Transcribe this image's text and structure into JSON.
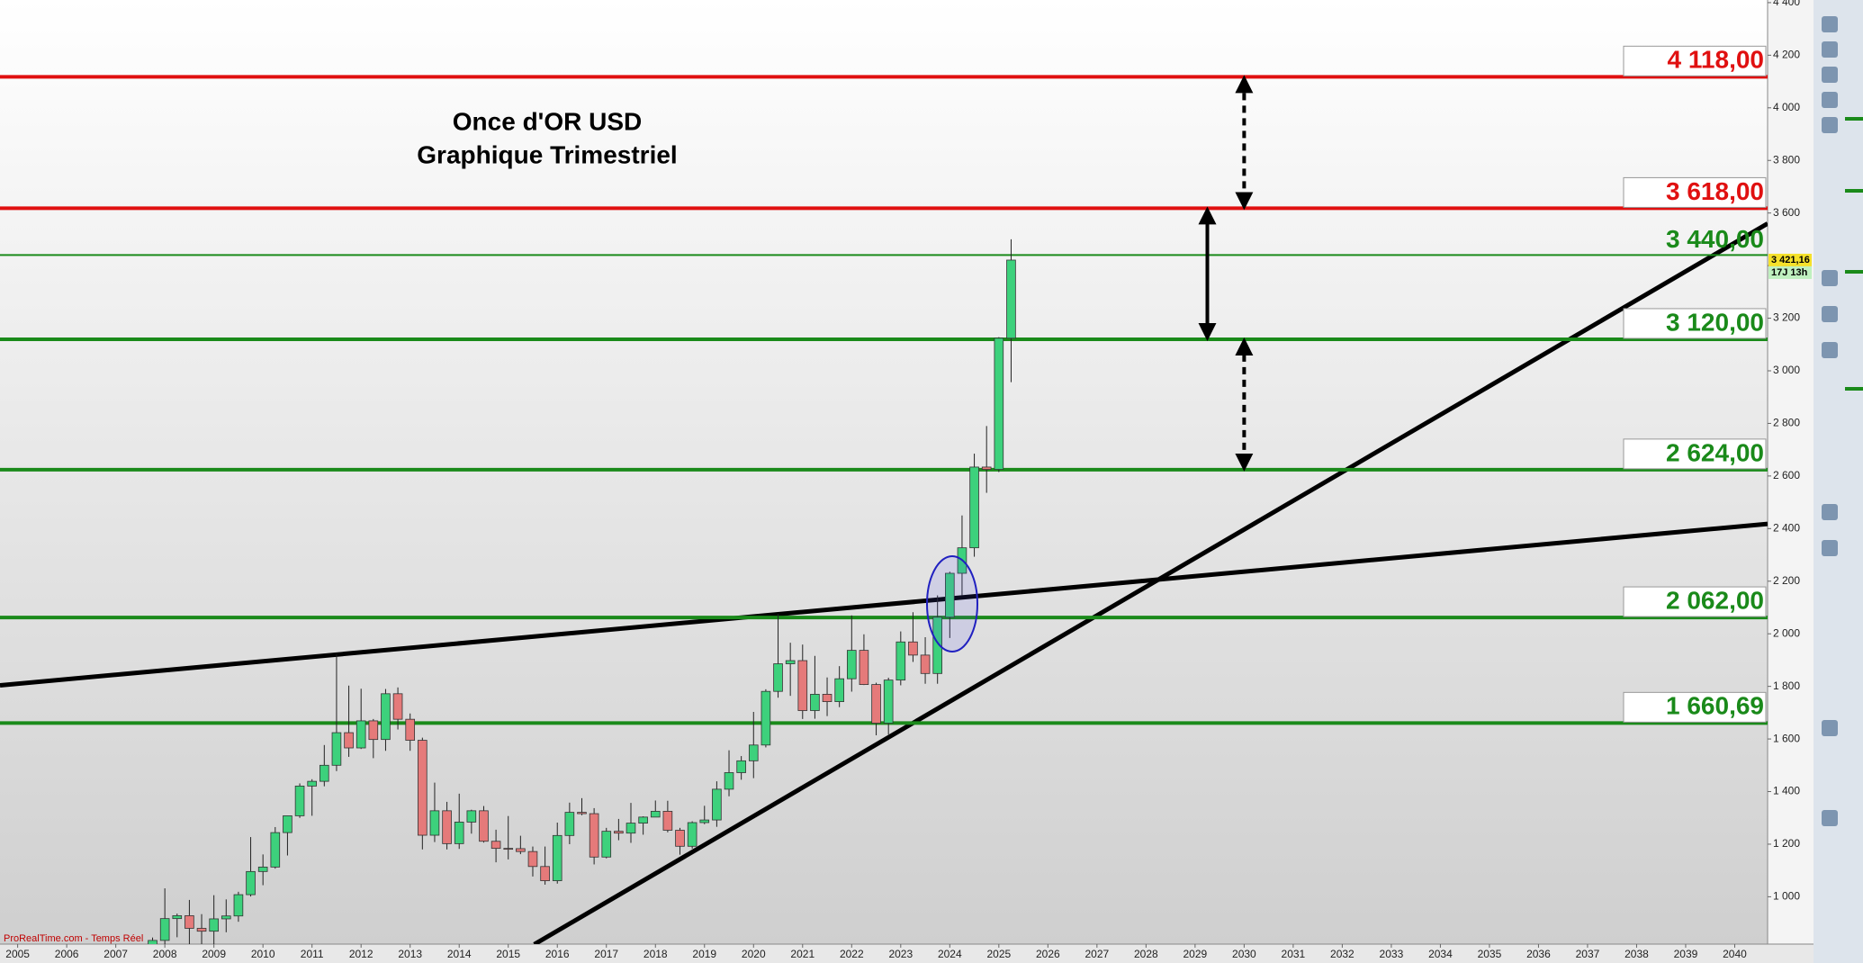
{
  "chart_data": {
    "type": "candlestick",
    "title": "Once d'OR USD",
    "subtitle": "Graphique Trimestriel",
    "footer": "ProRealTime.com - Temps Réel",
    "xlim": [
      2004.64,
      2040.67
    ],
    "xticks": [
      2005,
      2006,
      2007,
      2008,
      2009,
      2010,
      2011,
      2012,
      2013,
      2014,
      2015,
      2016,
      2017,
      2018,
      2019,
      2020,
      2021,
      2022,
      2023,
      2024,
      2025,
      2026,
      2027,
      2028,
      2029,
      2030,
      2031,
      2032,
      2033,
      2034,
      2035,
      2036,
      2037,
      2038,
      2039,
      2040
    ],
    "ylim": [
      820,
      4410
    ],
    "yticks": [
      {
        "value": 1000,
        "label": "1 000"
      },
      {
        "value": 1200,
        "label": "1 200"
      },
      {
        "value": 1400,
        "label": "1 400"
      },
      {
        "value": 1600,
        "label": "1 600"
      },
      {
        "value": 1800,
        "label": "1 800"
      },
      {
        "value": 2000,
        "label": "2 000"
      },
      {
        "value": 2200,
        "label": "2 200"
      },
      {
        "value": 2400,
        "label": "2 400"
      },
      {
        "value": 2600,
        "label": "2 600"
      },
      {
        "value": 2800,
        "label": "2 800"
      },
      {
        "value": 3000,
        "label": "3 000"
      },
      {
        "value": 3200,
        "label": "3 200"
      },
      {
        "value": 3400,
        "label": "3 400"
      },
      {
        "value": 3600,
        "label": "3 600"
      },
      {
        "value": 3800,
        "label": "3 800"
      },
      {
        "value": 4000,
        "label": "4 000"
      },
      {
        "value": 4200,
        "label": "4 200"
      },
      {
        "value": 4400,
        "label": "4 400"
      }
    ],
    "up_color": "#3dd17c",
    "down_color": "#e57a7a",
    "x": [
      2007.75,
      2008,
      2008.25,
      2008.5,
      2008.75,
      2009,
      2009.25,
      2009.5,
      2009.75,
      2010,
      2010.25,
      2010.5,
      2010.75,
      2011,
      2011.25,
      2011.5,
      2011.75,
      2012,
      2012.25,
      2012.5,
      2012.75,
      2013,
      2013.25,
      2013.5,
      2013.75,
      2014,
      2014.25,
      2014.5,
      2014.75,
      2015,
      2015.25,
      2015.5,
      2015.75,
      2016,
      2016.25,
      2016.5,
      2016.75,
      2017,
      2017.25,
      2017.5,
      2017.75,
      2018,
      2018.25,
      2018.5,
      2018.75,
      2019,
      2019.25,
      2019.5,
      2019.75,
      2020,
      2020.25,
      2020.5,
      2020.75,
      2021,
      2021.25,
      2021.5,
      2021.75,
      2022,
      2022.25,
      2022.5,
      2022.75,
      2023,
      2023.25,
      2023.5,
      2023.75,
      2024,
      2024.25,
      2024.5,
      2024.75,
      2025,
      2025.25
    ],
    "open": [
      743,
      834,
      917,
      928,
      880,
      869,
      916,
      927,
      1008,
      1096,
      1113,
      1244,
      1308,
      1421,
      1439,
      1500,
      1624,
      1566,
      1669,
      1598,
      1772,
      1675,
      1595,
      1234,
      1327,
      1202,
      1284,
      1327,
      1211,
      1184,
      1183,
      1172,
      1115,
      1061,
      1233,
      1321,
      1316,
      1151,
      1249,
      1242,
      1280,
      1303,
      1325,
      1253,
      1192,
      1282,
      1292,
      1409,
      1472,
      1517,
      1577,
      1781,
      1886,
      1898,
      1708,
      1770,
      1742,
      1829,
      1937,
      1807,
      1660,
      1824,
      1969,
      1919,
      1849,
      2063,
      2230,
      2327,
      2634,
      2625,
      3124
    ],
    "high": [
      845,
      1032,
      936,
      988,
      934,
      1006,
      990,
      1019,
      1227,
      1161,
      1265,
      1308,
      1431,
      1447,
      1577,
      1921,
      1803,
      1791,
      1676,
      1790,
      1796,
      1697,
      1605,
      1434,
      1361,
      1392,
      1331,
      1345,
      1255,
      1307,
      1232,
      1191,
      1191,
      1282,
      1358,
      1375,
      1337,
      1262,
      1296,
      1357,
      1306,
      1366,
      1365,
      1262,
      1287,
      1346,
      1439,
      1557,
      1535,
      1703,
      1789,
      2075,
      1966,
      1959,
      1916,
      1834,
      1877,
      2070,
      1998,
      1814,
      1833,
      2009,
      2082,
      1987,
      2146,
      2236,
      2450,
      2685,
      2790,
      3128,
      3500
    ],
    "low": [
      723,
      800,
      846,
      735,
      681,
      800,
      865,
      905,
      1001,
      1044,
      1107,
      1157,
      1300,
      1308,
      1420,
      1478,
      1532,
      1562,
      1527,
      1555,
      1636,
      1555,
      1180,
      1208,
      1180,
      1182,
      1240,
      1206,
      1131,
      1142,
      1162,
      1077,
      1046,
      1050,
      1200,
      1310,
      1123,
      1146,
      1215,
      1205,
      1236,
      1303,
      1245,
      1160,
      1183,
      1276,
      1266,
      1382,
      1445,
      1451,
      1568,
      1757,
      1764,
      1676,
      1677,
      1687,
      1721,
      1780,
      1805,
      1614,
      1617,
      1804,
      1893,
      1810,
      1810,
      1984,
      2146,
      2293,
      2536,
      2615,
      2957
    ],
    "close": [
      834,
      917,
      928,
      880,
      869,
      916,
      927,
      1008,
      1096,
      1113,
      1244,
      1308,
      1421,
      1439,
      1500,
      1624,
      1566,
      1669,
      1598,
      1772,
      1675,
      1595,
      1234,
      1327,
      1202,
      1284,
      1327,
      1211,
      1184,
      1183,
      1172,
      1115,
      1061,
      1233,
      1321,
      1316,
      1151,
      1249,
      1242,
      1280,
      1303,
      1325,
      1253,
      1192,
      1282,
      1292,
      1409,
      1472,
      1517,
      1577,
      1781,
      1886,
      1898,
      1708,
      1770,
      1742,
      1829,
      1937,
      1807,
      1660,
      1824,
      1969,
      1919,
      1849,
      2063,
      2230,
      2327,
      2634,
      2625,
      3124,
      3421
    ],
    "levels": [
      {
        "value": 4118,
        "label": "4 118,00",
        "color": "#e01010",
        "boxed": true
      },
      {
        "value": 3618,
        "label": "3 618,00",
        "color": "#e01010",
        "boxed": true
      },
      {
        "value": 3440,
        "label": "3 440,00",
        "color": "#1a8a1a",
        "boxed": false
      },
      {
        "value": 3120,
        "label": "3 120,00",
        "color": "#1a8a1a",
        "boxed": true
      },
      {
        "value": 2624,
        "label": "2 624,00",
        "color": "#1a8a1a",
        "boxed": true
      },
      {
        "value": 2062,
        "label": "2 062,00",
        "color": "#1a8a1a",
        "boxed": true
      },
      {
        "value": 1660.69,
        "label": "1 660,69",
        "color": "#1a8a1a",
        "boxed": true
      }
    ],
    "trendlines": [
      {
        "x": [
          2004.64,
          2040.67
        ],
        "y": [
          1804,
          2418
        ]
      },
      {
        "x": [
          2015.53,
          2040.67
        ],
        "y": [
          819,
          3560
        ]
      }
    ],
    "arrows": [
      {
        "x": 2030,
        "from": 3618,
        "to": 4118,
        "style": "dashed"
      },
      {
        "x": 2029.25,
        "from": 3120,
        "to": 3618,
        "style": "solid"
      },
      {
        "x": 2030,
        "from": 2624,
        "to": 3120,
        "style": "dashed"
      }
    ],
    "last_price": {
      "value": 3421.16,
      "label": "3 421,16",
      "countdown": "17J 13h"
    }
  }
}
